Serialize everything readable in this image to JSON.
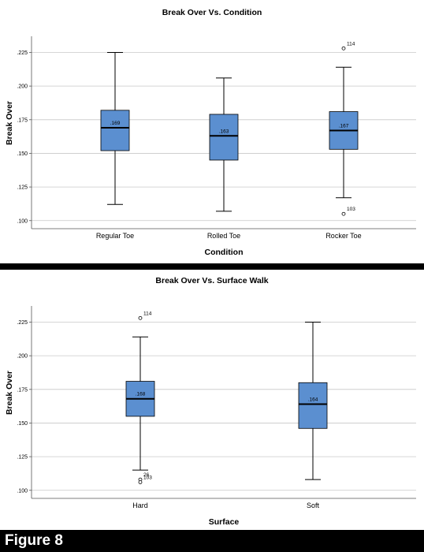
{
  "figure_label": "Figure 8",
  "chart_data": [
    {
      "type": "box",
      "title": "Break Over Vs. Condition",
      "xlabel": "Condition",
      "ylabel": "Break Over",
      "ylim": [
        0.094,
        0.237
      ],
      "yticks": [
        0.1,
        0.125,
        0.15,
        0.175,
        0.2,
        0.225
      ],
      "ytick_labels": [
        ".100",
        ".125",
        ".150",
        ".175",
        ".200",
        ".225"
      ],
      "grid": true,
      "box_color": "#5b8fd0",
      "categories": [
        "Regular Toe",
        "Rolled Toe",
        "Rocker Toe"
      ],
      "boxes": [
        {
          "min": 0.112,
          "q1": 0.152,
          "median": 0.169,
          "q3": 0.182,
          "max": 0.225,
          "median_label": ".169",
          "outliers": []
        },
        {
          "min": 0.107,
          "q1": 0.145,
          "median": 0.163,
          "q3": 0.179,
          "max": 0.206,
          "median_label": ".163",
          "outliers": []
        },
        {
          "min": 0.117,
          "q1": 0.153,
          "median": 0.167,
          "q3": 0.181,
          "max": 0.214,
          "median_label": ".167",
          "outliers": [
            {
              "value": 0.228,
              "label": "114"
            },
            {
              "value": 0.105,
              "label": "103"
            }
          ]
        }
      ]
    },
    {
      "type": "box",
      "title": "Break Over Vs. Surface Walk",
      "xlabel": "Surface",
      "ylabel": "Break Over",
      "ylim": [
        0.094,
        0.237
      ],
      "yticks": [
        0.1,
        0.125,
        0.15,
        0.175,
        0.2,
        0.225
      ],
      "ytick_labels": [
        ".100",
        ".125",
        ".150",
        ".175",
        ".200",
        ".225"
      ],
      "grid": true,
      "box_color": "#5b8fd0",
      "categories": [
        "Hard",
        "Soft"
      ],
      "boxes": [
        {
          "min": 0.115,
          "q1": 0.155,
          "median": 0.168,
          "q3": 0.181,
          "max": 0.214,
          "median_label": ".168",
          "outliers": [
            {
              "value": 0.228,
              "label": "114"
            },
            {
              "value": 0.108,
              "label": "26"
            },
            {
              "value": 0.106,
              "label": "103"
            }
          ]
        },
        {
          "min": 0.108,
          "q1": 0.146,
          "median": 0.164,
          "q3": 0.18,
          "max": 0.225,
          "median_label": ".164",
          "outliers": []
        }
      ]
    }
  ]
}
